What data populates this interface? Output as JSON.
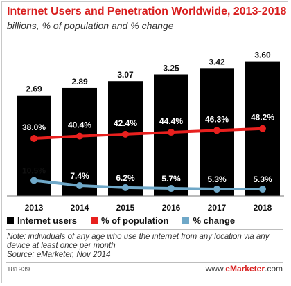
{
  "chart_data": {
    "type": "bar",
    "title": "Internet Users and Penetration Worldwide, 2013-2018",
    "subtitle": "billions, % of population and % change",
    "categories": [
      "2013",
      "2014",
      "2015",
      "2016",
      "2017",
      "2018"
    ],
    "series": [
      {
        "name": "Internet users",
        "type": "bar",
        "values": [
          2.69,
          2.89,
          3.07,
          3.25,
          3.42,
          3.6
        ],
        "labels": [
          "2.69",
          "2.89",
          "3.07",
          "3.25",
          "3.42",
          "3.60"
        ],
        "color": "#000000"
      },
      {
        "name": "% of population",
        "type": "line",
        "values": [
          38.0,
          40.4,
          42.4,
          44.4,
          46.3,
          48.2
        ],
        "labels": [
          "38.0%",
          "40.4%",
          "42.4%",
          "44.4%",
          "46.3%",
          "48.2%"
        ],
        "color": "#e8201e"
      },
      {
        "name": "% change",
        "type": "line",
        "values": [
          10.5,
          7.4,
          6.2,
          5.7,
          5.3,
          5.3
        ],
        "labels": [
          "10.5%",
          "7.4%",
          "6.2%",
          "5.7%",
          "5.3%",
          "5.3%"
        ],
        "color": "#6fa8c8"
      }
    ],
    "grid": false,
    "legend": "bottom"
  },
  "note": "Note: individuals of any age who use the internet from any location via any device at least once per month",
  "source": "Source: eMarketer, Nov 2014",
  "chart_id": "181939",
  "brand": {
    "prefix": "www.",
    "name": "eMarketer",
    "suffix": ".com"
  }
}
